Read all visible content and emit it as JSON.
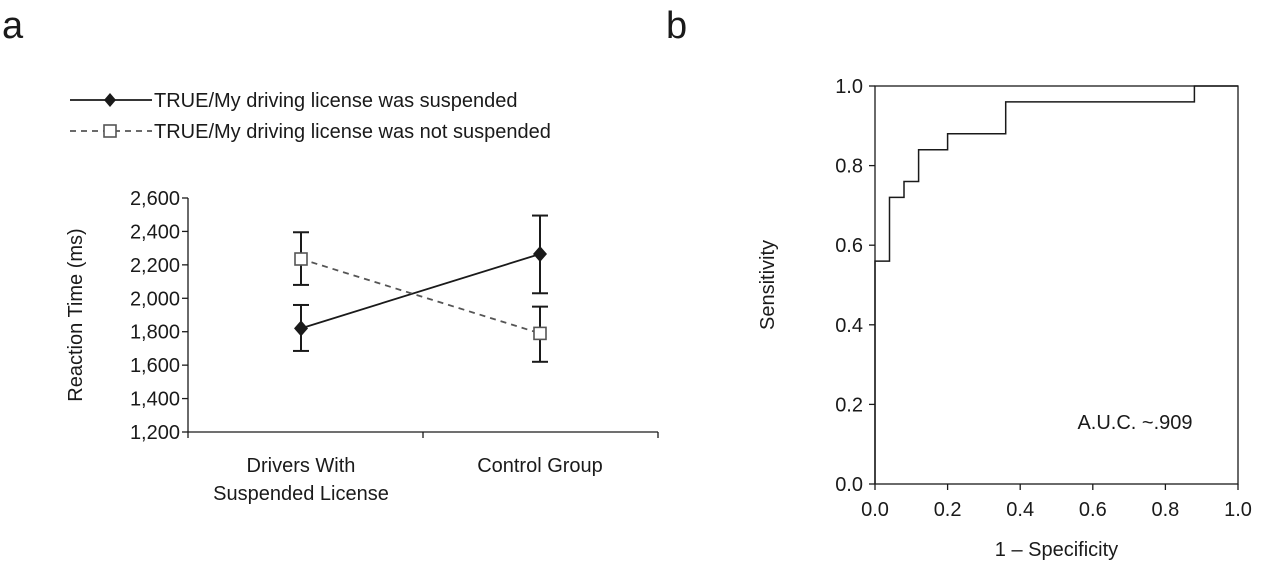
{
  "panels": {
    "a": {
      "letter": "a"
    },
    "b": {
      "letter": "b"
    }
  },
  "chart_data": [
    {
      "type": "line",
      "panel": "a",
      "categories": [
        "Drivers With|Suspended License",
        "Control Group"
      ],
      "series": [
        {
          "name": "TRUE/My driving license was suspended",
          "values": [
            1820,
            2265
          ],
          "error_low": [
            1685,
            2030
          ],
          "error_high": [
            1960,
            2495
          ],
          "line_style": "solid",
          "marker": "filled-diamond",
          "color": "#1a1a1a"
        },
        {
          "name": "TRUE/My driving license was not suspended",
          "values": [
            2235,
            1790
          ],
          "error_low": [
            2080,
            1620
          ],
          "error_high": [
            2395,
            1950
          ],
          "line_style": "dashed",
          "marker": "open-square",
          "color": "#555555"
        }
      ],
      "xlabel": "",
      "ylabel": "Reaction Time (ms)",
      "ylim": [
        1200,
        2600
      ],
      "yticks": [
        1200,
        1400,
        1600,
        1800,
        2000,
        2200,
        2400,
        2600
      ],
      "ytick_labels": [
        "1,200",
        "1,400",
        "1,600",
        "1,800",
        "2,000",
        "2,200",
        "2,400",
        "2,600"
      ],
      "legend_position": "top-left",
      "grid": false
    },
    {
      "type": "line",
      "panel": "b",
      "series": [
        {
          "name": "",
          "x": [
            0.0,
            0.0,
            0.04,
            0.04,
            0.08,
            0.08,
            0.12,
            0.12,
            0.2,
            0.2,
            0.36,
            0.36,
            0.88,
            0.88,
            1.0
          ],
          "y": [
            0.0,
            0.56,
            0.56,
            0.72,
            0.72,
            0.76,
            0.76,
            0.84,
            0.84,
            0.88,
            0.88,
            0.96,
            0.96,
            1.0,
            1.0
          ],
          "step": true,
          "color": "#1a1a1a"
        }
      ],
      "xlabel": "1 – Specificity",
      "ylabel": "Sensitivity",
      "xlim": [
        0.0,
        1.0
      ],
      "ylim": [
        0.0,
        1.0
      ],
      "xticks": [
        "0.0",
        "0.2",
        "0.4",
        "0.6",
        "0.8",
        "1.0"
      ],
      "yticks": [
        "0.0",
        "0.2",
        "0.4",
        "0.6",
        "0.8",
        "1.0"
      ],
      "annotation": "A.U.C. ~.909",
      "grid": false,
      "legend_position": "none"
    }
  ]
}
